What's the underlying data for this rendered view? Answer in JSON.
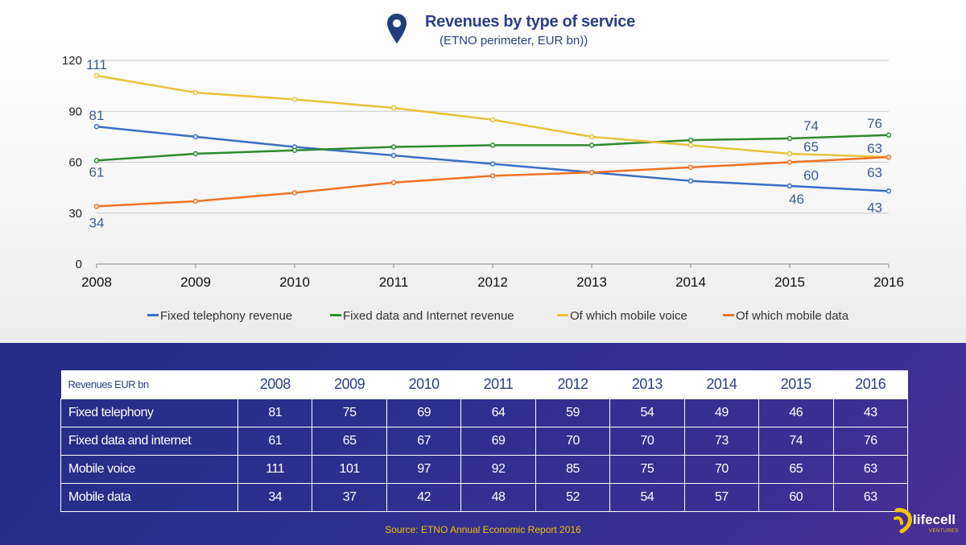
{
  "title": "Revenues by type of service",
  "subtitle": "(ETNO perimeter, EUR bn))",
  "source": "Source: ETNO Annual Economic Report 2016",
  "logo": {
    "text": "lifecell",
    "sub": "VENTURES"
  },
  "chart_data": {
    "type": "line",
    "x": [
      "2008",
      "2009",
      "2010",
      "2011",
      "2012",
      "2013",
      "2014",
      "2015",
      "2016"
    ],
    "yticks": [
      0,
      30,
      60,
      90,
      120
    ],
    "ylim": [
      0,
      120
    ],
    "grid": true,
    "legend_position": "bottom",
    "series": [
      {
        "name": "Fixed telephony revenue",
        "color": "#3a6fc4",
        "values": [
          81,
          75,
          69,
          64,
          59,
          54,
          49,
          46,
          43
        ]
      },
      {
        "name": "Fixed data and Internet revenue",
        "color": "#2e8b2e",
        "values": [
          61,
          65,
          67,
          69,
          70,
          70,
          73,
          74,
          76
        ]
      },
      {
        "name": "Of which mobile voice",
        "color": "#e8c33a",
        "values": [
          111,
          101,
          97,
          92,
          85,
          75,
          70,
          65,
          63
        ]
      },
      {
        "name": "Of which mobile data",
        "color": "#f07223",
        "values": [
          34,
          37,
          42,
          48,
          52,
          54,
          57,
          60,
          63
        ]
      }
    ],
    "data_labels": [
      {
        "text": "111",
        "series": 2,
        "index": 0
      },
      {
        "text": "81",
        "series": 0,
        "index": 0
      },
      {
        "text": "61",
        "series": 1,
        "index": 0
      },
      {
        "text": "34",
        "series": 3,
        "index": 0
      },
      {
        "text": "74",
        "series": 1,
        "index": 7
      },
      {
        "text": "65",
        "series": 2,
        "index": 7
      },
      {
        "text": "60",
        "series": 3,
        "index": 7
      },
      {
        "text": "46",
        "series": 0,
        "index": 7
      },
      {
        "text": "76",
        "series": 1,
        "index": 8
      },
      {
        "text": "63",
        "series": 2,
        "index": 8
      },
      {
        "text": "63",
        "series": 3,
        "index": 8
      },
      {
        "text": "43",
        "series": 0,
        "index": 8
      }
    ]
  },
  "table": {
    "header_label": "Revenues EUR bn",
    "years": [
      "2008",
      "2009",
      "2010",
      "2011",
      "2012",
      "2013",
      "2014",
      "2015",
      "2016"
    ],
    "rows": [
      {
        "label": "Fixed telephony",
        "values": [
          "81",
          "75",
          "69",
          "64",
          "59",
          "54",
          "49",
          "46",
          "43"
        ]
      },
      {
        "label": "Fixed data and internet",
        "values": [
          "61",
          "65",
          "67",
          "69",
          "70",
          "70",
          "73",
          "74",
          "76"
        ]
      },
      {
        "label": "Mobile voice",
        "values": [
          "111",
          "101",
          "97",
          "92",
          "85",
          "75",
          "70",
          "65",
          "63"
        ]
      },
      {
        "label": "Mobile data",
        "values": [
          "34",
          "37",
          "42",
          "48",
          "52",
          "54",
          "57",
          "60",
          "63"
        ]
      }
    ]
  }
}
